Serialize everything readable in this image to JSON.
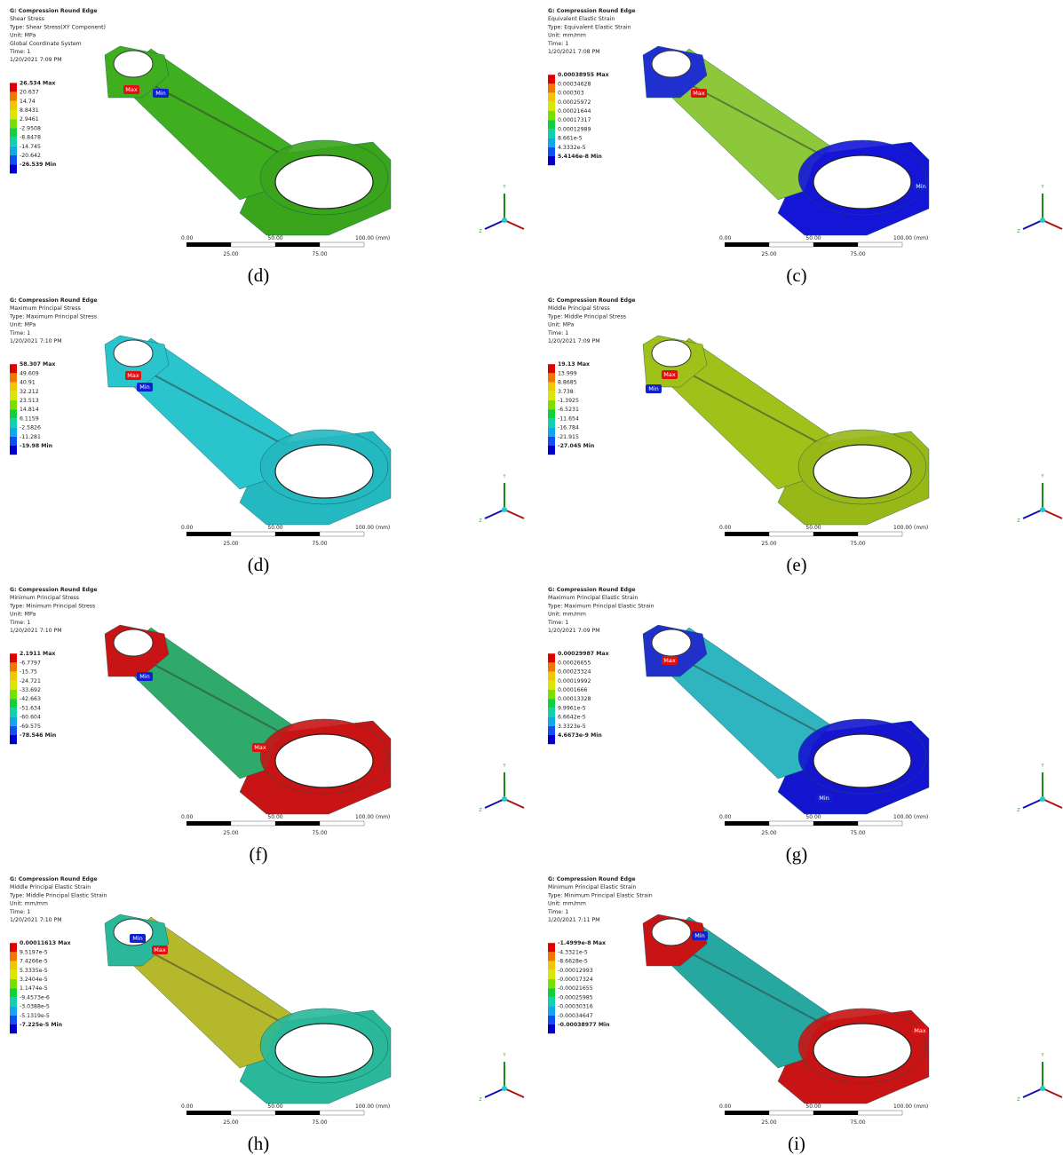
{
  "study_lines_shared": null,
  "scale": {
    "top": [
      "0.00",
      "50.00",
      "100.00 (mm)"
    ],
    "bottom": [
      "25.00",
      "75.00"
    ]
  },
  "triad": [
    "Y",
    "Z"
  ],
  "legend_colors": [
    "#e00000",
    "#f07800",
    "#f0c800",
    "#d8e800",
    "#78e000",
    "#10d040",
    "#10d0b0",
    "#10a8e8",
    "#1050f0",
    "#0000c8"
  ],
  "panels": [
    {
      "header": [
        "G: Compression Round Edge",
        "Shear Stress",
        "Type: Shear Stress(XY Component)",
        "Unit: MPa",
        "Global Coordinate System",
        "Time: 1",
        "1/20/2021 7:09 PM"
      ],
      "legend": [
        "26.534 Max",
        "20.637",
        "14.74",
        "8.8431",
        "2.9461",
        "-2.9508",
        "-8.8478",
        "-14.745",
        "-20.642",
        "-26.539 Min"
      ],
      "markers": [
        {
          "label": "Max",
          "color": "#e01010"
        },
        {
          "label": "Min",
          "color": "#1020d0"
        }
      ],
      "colors": {
        "body": "#3fae1f",
        "small_end": "#3fae1f",
        "big_end": "#3aa51c"
      },
      "caption": "(d)"
    },
    {
      "header": [
        "G: Compression Round Edge",
        "Equivalent Elastic Strain",
        "Type: Equivalent Elastic Strain",
        "Unit: mm/mm",
        "Time: 1",
        "1/20/2021 7:08 PM"
      ],
      "legend": [
        "0.00038955 Max",
        "0.00034628",
        "0.000303",
        "0.00025972",
        "0.00021644",
        "0.00017317",
        "0.00012989",
        "8.661e-5",
        "4.3332e-5",
        "5.4146e-8 Min"
      ],
      "markers": [
        {
          "label": "Max",
          "color": "#e01010"
        },
        {
          "label": "Min",
          "color": "#1020d0"
        }
      ],
      "colors": {
        "body": "#8cc83a",
        "small_end": "#2030d0",
        "big_end": "#1515d8"
      },
      "caption": "(c)"
    },
    {
      "header": [
        "G: Compression Round Edge",
        "Maximum Principal Stress",
        "Type: Maximum Principal Stress",
        "Unit: MPa",
        "Time: 1",
        "1/20/2021 7:10 PM"
      ],
      "legend": [
        "58.307 Max",
        "49.609",
        "40.91",
        "32.212",
        "23.513",
        "14.814",
        "6.1159",
        "-2.5826",
        "-11.281",
        "-19.98 Min"
      ],
      "markers": [
        {
          "label": "Max",
          "color": "#e01010"
        },
        {
          "label": "Min",
          "color": "#1020d0"
        }
      ],
      "colors": {
        "body": "#29c4cc",
        "small_end": "#29c4cc",
        "big_end": "#24b8c0"
      },
      "caption": "(d)"
    },
    {
      "header": [
        "G: Compression Round Edge",
        "Middle Principal Stress",
        "Type: Middle Principal Stress",
        "Unit: MPa",
        "Time: 1",
        "1/20/2021 7:09 PM"
      ],
      "legend": [
        "19.13 Max",
        "13.999",
        "8.8685",
        "3.738",
        "-1.3925",
        "-6.5231",
        "-11.654",
        "-16.784",
        "-21.915",
        "-27.045 Min"
      ],
      "markers": [
        {
          "label": "Max",
          "color": "#e01010"
        },
        {
          "label": "Min",
          "color": "#1020d0"
        }
      ],
      "colors": {
        "body": "#9fc11a",
        "small_end": "#9fc11a",
        "big_end": "#98b818"
      },
      "caption": "(e)"
    },
    {
      "header": [
        "G: Compression Round Edge",
        "Minimum Principal Stress",
        "Type: Minimum Principal Stress",
        "Unit: MPa",
        "Time: 1",
        "1/20/2021 7:10 PM"
      ],
      "legend": [
        "2.1911 Max",
        "-6.7797",
        "-15.75",
        "-24.721",
        "-33.692",
        "-42.663",
        "-51.634",
        "-60.604",
        "-69.575",
        "-78.546 Min"
      ],
      "markers": [
        {
          "label": "Min",
          "color": "#1020d0"
        },
        {
          "label": "Max",
          "color": "#e01010"
        }
      ],
      "colors": {
        "body": "#2faa6a",
        "small_end": "#c81414",
        "big_end": "#c81414"
      },
      "caption": "(f)"
    },
    {
      "header": [
        "G: Compression Round Edge",
        "Maximum Principal Elastic Strain",
        "Type: Maximum Principal Elastic Strain",
        "Unit: mm/mm",
        "Time: 1",
        "1/20/2021 7:09 PM"
      ],
      "legend": [
        "0.00029987 Max",
        "0.00026655",
        "0.00023324",
        "0.00019992",
        "0.0001666",
        "0.00013328",
        "9.9961e-5",
        "6.6642e-5",
        "3.3323e-5",
        "4.6673e-9 Min"
      ],
      "markers": [
        {
          "label": "Max",
          "color": "#e01010"
        },
        {
          "label": "Min",
          "color": "#1020d0"
        }
      ],
      "colors": {
        "body": "#2fb5c0",
        "small_end": "#2030c8",
        "big_end": "#1515d0"
      },
      "caption": "(g)"
    },
    {
      "header": [
        "G: Compression Round Edge",
        "Middle Principal Elastic Strain",
        "Type: Middle Principal Elastic Strain",
        "Unit: mm/mm",
        "Time: 1",
        "1/20/2021 7:10 PM"
      ],
      "legend": [
        "0.00011613 Max",
        "9.5197e-5",
        "7.4266e-5",
        "5.3335e-5",
        "3.2404e-5",
        "1.1474e-5",
        "-9.4573e-6",
        "-3.0388e-5",
        "-5.1319e-5",
        "-7.225e-5 Min"
      ],
      "markers": [
        {
          "label": "Min",
          "color": "#1020d0"
        },
        {
          "label": "Max",
          "color": "#e01010"
        }
      ],
      "colors": {
        "body": "#b5b82a",
        "small_end": "#2ab89a",
        "big_end": "#2ab89a"
      },
      "caption": "(h)"
    },
    {
      "header": [
        "G: Compression Round Edge",
        "Minimum Principal Elastic Strain",
        "Type: Minimum Principal Elastic Strain",
        "Unit: mm/mm",
        "Time: 1",
        "1/20/2021 7:11 PM"
      ],
      "legend": [
        "-1.4999e-8 Max",
        "-4.3321e-5",
        "-8.6628e-5",
        "-0.00012993",
        "-0.00017324",
        "-0.00021655",
        "-0.00025985",
        "-0.00030316",
        "-0.00034647",
        "-0.00038977 Min"
      ],
      "markers": [
        {
          "label": "Min",
          "color": "#1020d0"
        },
        {
          "label": "Max",
          "color": "#e01010"
        }
      ],
      "colors": {
        "body": "#26a8a0",
        "small_end": "#c81414",
        "big_end": "#c81414"
      },
      "caption": "(i)"
    }
  ]
}
